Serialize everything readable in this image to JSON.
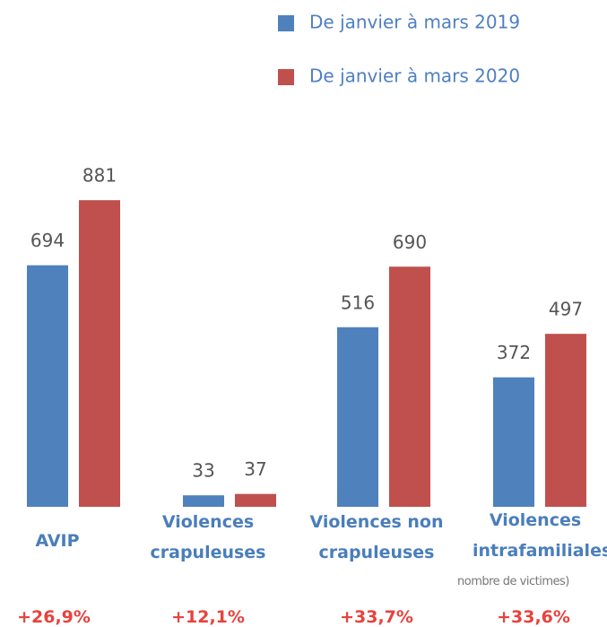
{
  "chart_data": {
    "type": "bar",
    "categories": [
      "AVIP",
      "Violences crapuleuses",
      "Violences non crapuleuses",
      "Violences intrafamiliales"
    ],
    "series": [
      {
        "name": "De janvier à mars 2019",
        "color": "#4f81bd",
        "values": [
          694,
          33,
          516,
          372
        ]
      },
      {
        "name": "De janvier à mars 2020",
        "color": "#c0504d",
        "values": [
          881,
          37,
          690,
          497
        ]
      }
    ],
    "changes": [
      "+26,9%",
      "+12,1%",
      "+33,7%",
      "+33,6%"
    ],
    "note": "nombre de victimes)"
  }
}
